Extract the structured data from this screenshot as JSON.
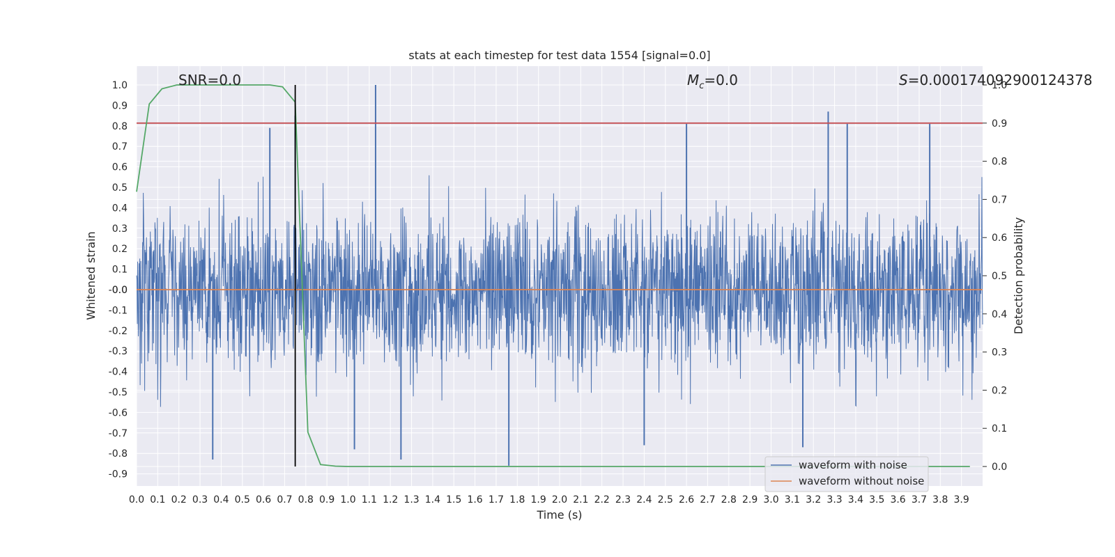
{
  "chart_data": {
    "type": "line",
    "title": "stats at each timestep for test data 1554 [signal=0.0]",
    "xlabel": "Time (s)",
    "ylabel_left": "Whitened strain",
    "ylabel_right": "Detection probability",
    "xlim": [
      0.0,
      4.0
    ],
    "ylim_left": [
      -0.95,
      1.09
    ],
    "ylim_right": [
      -0.05,
      1.0
    ],
    "x_ticks": [
      "0.0",
      "0.1",
      "0.2",
      "0.3",
      "0.4",
      "0.5",
      "0.6",
      "0.7",
      "0.8",
      "0.9",
      "1.0",
      "1.1",
      "1.2",
      "1.3",
      "1.4",
      "1.5",
      "1.6",
      "1.7",
      "1.8",
      "1.9",
      "2.0",
      "2.1",
      "2.2",
      "2.3",
      "2.4",
      "2.5",
      "2.6",
      "2.7",
      "2.8",
      "2.9",
      "3.0",
      "3.1",
      "3.2",
      "3.3",
      "3.4",
      "3.5",
      "3.6",
      "3.7",
      "3.8",
      "3.9"
    ],
    "y_ticks_left": [
      "1.0",
      "0.9",
      "0.8",
      "0.7",
      "0.6",
      "0.5",
      "0.4",
      "0.3",
      "0.2",
      "0.1",
      "0.0",
      "-0.0",
      "-0.1",
      "-0.2",
      "-0.3",
      "-0.4",
      "-0.5",
      "-0.6",
      "-0.7",
      "-0.8",
      "-0.9"
    ],
    "y_ticks_right": [
      "1.0",
      "0.9",
      "0.8",
      "0.7",
      "0.6",
      "0.5",
      "0.4",
      "0.3",
      "0.2",
      "0.1",
      "0.0"
    ],
    "annotations": {
      "snr": "SNR=0.0",
      "mc_symbol": "M",
      "mc_sub": "c",
      "mc_value": "=0.0",
      "s_symbol": "S",
      "s_value": "=0.00017409290012437​8"
    },
    "grid": true,
    "legend_position": "lower-right",
    "legend": [
      "waveform with noise",
      "waveform without noise"
    ],
    "series": [
      {
        "name": "waveform with noise",
        "axis": "left",
        "color": "#4c72b0",
        "description": "dense whitened strain noise, roughly between -0.55 and 0.65 with spikes",
        "notable_peaks": [
          {
            "x": 1.13,
            "y": 1.0
          },
          {
            "x": 3.27,
            "y": 0.87
          },
          {
            "x": 0.75,
            "y": 0.85
          },
          {
            "x": 2.6,
            "y": 0.81
          },
          {
            "x": 3.36,
            "y": 0.81
          },
          {
            "x": 3.75,
            "y": 0.81
          },
          {
            "x": 0.63,
            "y": 0.79
          },
          {
            "x": 1.76,
            "y": -0.86
          },
          {
            "x": 0.36,
            "y": -0.83
          },
          {
            "x": 1.25,
            "y": -0.83
          },
          {
            "x": 1.03,
            "y": -0.78
          },
          {
            "x": 3.15,
            "y": -0.77
          },
          {
            "x": 2.4,
            "y": -0.76
          }
        ]
      },
      {
        "name": "waveform without noise",
        "axis": "left",
        "color": "#dd8452",
        "x": [
          0.0,
          4.0
        ],
        "y": [
          0.0,
          0.0
        ]
      },
      {
        "name": "detection probability",
        "axis": "right",
        "color": "#55a868",
        "x": [
          0.0,
          0.06,
          0.12,
          0.19,
          0.25,
          0.31,
          0.38,
          0.44,
          0.5,
          0.56,
          0.63,
          0.69,
          0.75,
          0.81,
          0.87,
          0.94,
          1.0,
          1.5,
          2.0,
          2.5,
          3.0,
          3.5,
          3.94
        ],
        "y": [
          0.72,
          0.95,
          0.99,
          1.0,
          1.0,
          1.0,
          1.0,
          1.0,
          1.0,
          1.0,
          1.0,
          0.995,
          0.955,
          0.09,
          0.005,
          0.001,
          0.0,
          0.0,
          0.0,
          0.0,
          0.0,
          0.0,
          0.0
        ]
      }
    ],
    "threshold_line": {
      "axis": "right",
      "y": 0.9,
      "color": "#c44e52"
    },
    "marker_line": {
      "x": 0.75,
      "color": "#000000"
    }
  }
}
